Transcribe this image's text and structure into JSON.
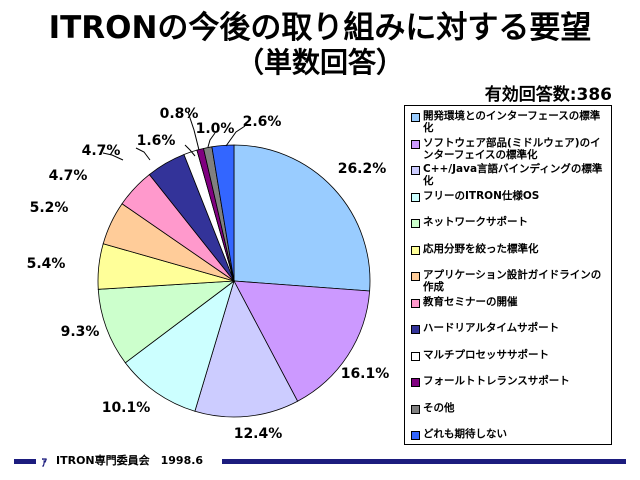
{
  "header": {
    "title": "ITRONの今後の取り組みに対する要望",
    "subtitle": "（単数回答）",
    "count_label": "有効回答数:386"
  },
  "footer": {
    "logo": "ｧ",
    "text": "ITRON専門委員会　1998.6"
  },
  "chart_data": {
    "type": "pie",
    "title": "ITRONの今後の取り組みに対する要望",
    "subtitle": "（単数回答）",
    "legend_position": "right",
    "start": "top, clockwise",
    "categories": [
      "開発環境とのインターフェースの標準化",
      "ソフトウェア部品(ミドルウェア)のインターフェイスの標準化",
      "C++/Java言語バインディングの標準化",
      "フリーのITRON仕様OS",
      "ネットワークサポート",
      "応用分野を絞った標準化",
      "アプリケーション設計ガイドラインの作成",
      "教育セミナーの開催",
      "ハードリアルタイムサポート",
      "マルチプロセッササポート",
      "フォールトトレランスサポート",
      "その他",
      "どれも期待しない"
    ],
    "values": [
      26.2,
      16.1,
      12.4,
      10.1,
      9.3,
      5.4,
      5.2,
      4.7,
      4.7,
      1.6,
      0.8,
      1.0,
      2.6
    ],
    "labels": [
      "26.2%",
      "16.1%",
      "12.4%",
      "10.1%",
      "9.3%",
      "5.4%",
      "5.2%",
      "4.7%",
      "4.7%",
      "1.6%",
      "0.8%",
      "1.0%",
      "2.6%"
    ],
    "colors": [
      "#99ccff",
      "#cc99ff",
      "#ccccff",
      "#ccffff",
      "#ccffcc",
      "#ffff99",
      "#ffcc99",
      "#ff99cc",
      "#333399",
      "#ffffff",
      "#800080",
      "#808080",
      "#3366ff"
    ]
  }
}
